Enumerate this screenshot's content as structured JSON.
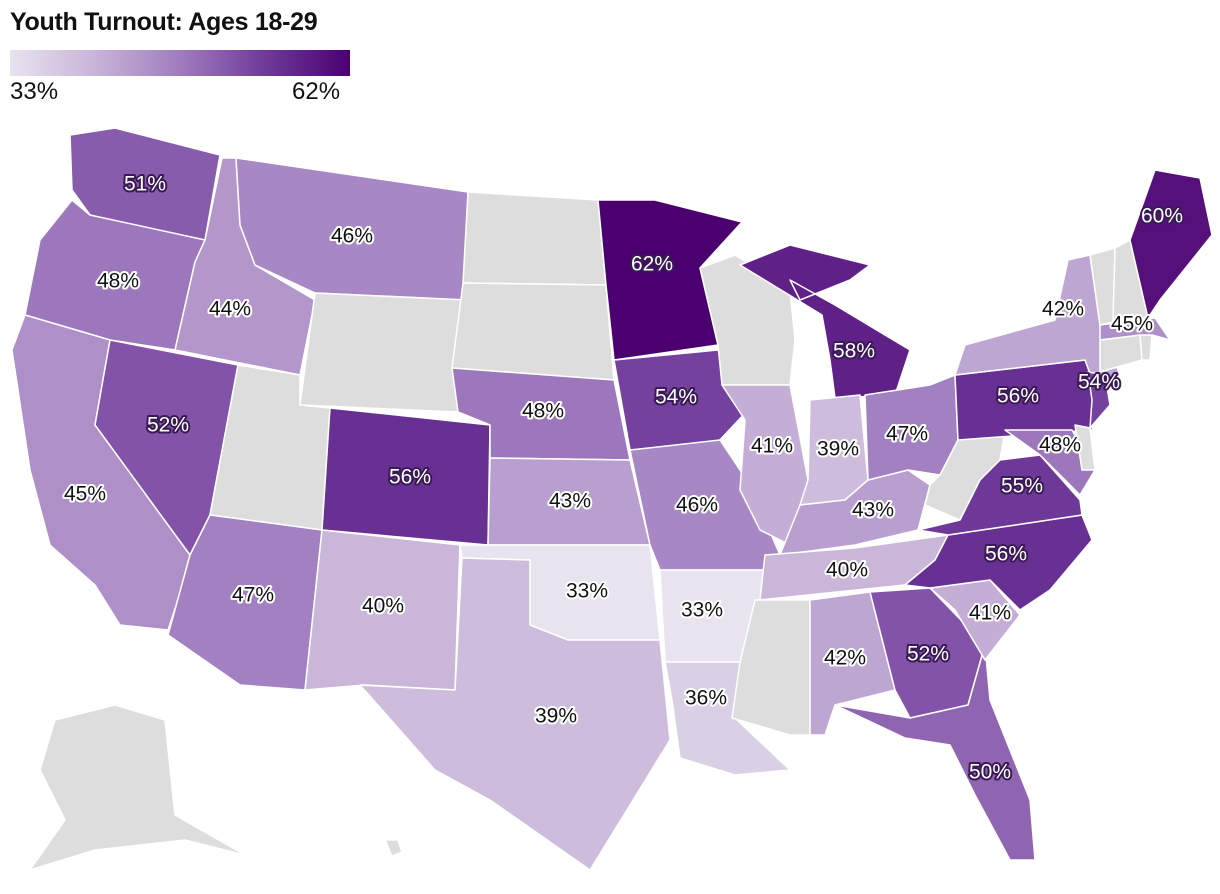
{
  "title": "Youth Turnout: Ages 18-29",
  "legend": {
    "min_label": "33%",
    "max_label": "62%",
    "min": 33,
    "max": 62,
    "colors": [
      "#e7e3ef",
      "#c8b4d8",
      "#a07cbf",
      "#6f3a9a",
      "#4b0070"
    ]
  },
  "no_data_color": "#dddddd",
  "states": [
    {
      "code": "WA",
      "label": "51%",
      "value": 51
    },
    {
      "code": "OR",
      "label": "48%",
      "value": 48
    },
    {
      "code": "CA",
      "label": "45%",
      "value": 45
    },
    {
      "code": "ID",
      "label": "44%",
      "value": 44
    },
    {
      "code": "NV",
      "label": "52%",
      "value": 52
    },
    {
      "code": "MT",
      "label": "46%",
      "value": 46
    },
    {
      "code": "WY",
      "label": "",
      "value": null
    },
    {
      "code": "UT",
      "label": "",
      "value": null
    },
    {
      "code": "AZ",
      "label": "47%",
      "value": 47
    },
    {
      "code": "CO",
      "label": "56%",
      "value": 56
    },
    {
      "code": "NM",
      "label": "40%",
      "value": 40
    },
    {
      "code": "ND",
      "label": "",
      "value": null
    },
    {
      "code": "SD",
      "label": "",
      "value": null
    },
    {
      "code": "NE",
      "label": "48%",
      "value": 48
    },
    {
      "code": "KS",
      "label": "43%",
      "value": 43
    },
    {
      "code": "OK",
      "label": "33%",
      "value": 33
    },
    {
      "code": "TX",
      "label": "39%",
      "value": 39
    },
    {
      "code": "MN",
      "label": "62%",
      "value": 62
    },
    {
      "code": "IA",
      "label": "54%",
      "value": 54
    },
    {
      "code": "MO",
      "label": "46%",
      "value": 46
    },
    {
      "code": "AR",
      "label": "33%",
      "value": 33
    },
    {
      "code": "LA",
      "label": "36%",
      "value": 36
    },
    {
      "code": "WI",
      "label": "",
      "value": null
    },
    {
      "code": "IL",
      "label": "41%",
      "value": 41
    },
    {
      "code": "MS",
      "label": "",
      "value": null
    },
    {
      "code": "MI",
      "label": "58%",
      "value": 58
    },
    {
      "code": "IN",
      "label": "39%",
      "value": 39
    },
    {
      "code": "KY",
      "label": "43%",
      "value": 43
    },
    {
      "code": "TN",
      "label": "40%",
      "value": 40
    },
    {
      "code": "AL",
      "label": "42%",
      "value": 42
    },
    {
      "code": "OH",
      "label": "47%",
      "value": 47
    },
    {
      "code": "WV",
      "label": "",
      "value": null
    },
    {
      "code": "GA",
      "label": "52%",
      "value": 52
    },
    {
      "code": "FL",
      "label": "50%",
      "value": 50
    },
    {
      "code": "SC",
      "label": "41%",
      "value": 41
    },
    {
      "code": "NC",
      "label": "56%",
      "value": 56
    },
    {
      "code": "VA",
      "label": "55%",
      "value": 55
    },
    {
      "code": "PA",
      "label": "56%",
      "value": 56
    },
    {
      "code": "NY",
      "label": "42%",
      "value": 42
    },
    {
      "code": "NJ",
      "label": "54%",
      "value": 54
    },
    {
      "code": "MD",
      "label": "48%",
      "value": 48
    },
    {
      "code": "DE",
      "label": "",
      "value": null
    },
    {
      "code": "CT",
      "label": "",
      "value": null
    },
    {
      "code": "RI",
      "label": "",
      "value": null
    },
    {
      "code": "MA",
      "label": "45%",
      "value": 45
    },
    {
      "code": "VT",
      "label": "",
      "value": null
    },
    {
      "code": "NH",
      "label": "",
      "value": null
    },
    {
      "code": "ME",
      "label": "60%",
      "value": 60
    },
    {
      "code": "AK",
      "label": "",
      "value": null
    },
    {
      "code": "HI",
      "label": "",
      "value": null
    }
  ]
}
